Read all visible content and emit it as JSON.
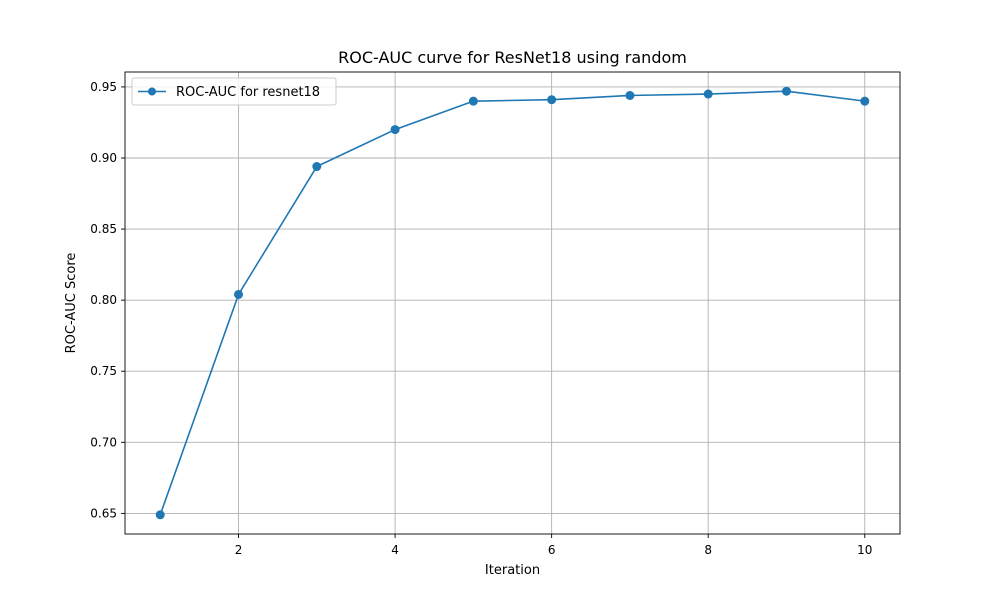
{
  "chart_data": {
    "type": "line",
    "title": "ROC-AUC curve for ResNet18 using random",
    "xlabel": "Iteration",
    "ylabel": "ROC-AUC Score",
    "x": [
      1,
      2,
      3,
      4,
      5,
      6,
      7,
      8,
      9,
      10
    ],
    "series": [
      {
        "name": "ROC-AUC for resnet18",
        "color": "#1f77b4",
        "marker": "circle",
        "values": [
          0.649,
          0.804,
          0.894,
          0.92,
          0.94,
          0.941,
          0.944,
          0.945,
          0.947,
          0.94
        ]
      }
    ],
    "xlim": [
      0.55,
      10.45
    ],
    "ylim": [
      0.6355,
      0.9605
    ],
    "xticks": [
      2,
      4,
      6,
      8,
      10
    ],
    "xtick_labels": [
      "2",
      "4",
      "6",
      "8",
      "10"
    ],
    "yticks": [
      0.65,
      0.7,
      0.75,
      0.8,
      0.85,
      0.9,
      0.95
    ],
    "ytick_labels": [
      "0.65",
      "0.70",
      "0.75",
      "0.80",
      "0.85",
      "0.90",
      "0.95"
    ],
    "grid": true,
    "legend_position": "upper-left"
  }
}
